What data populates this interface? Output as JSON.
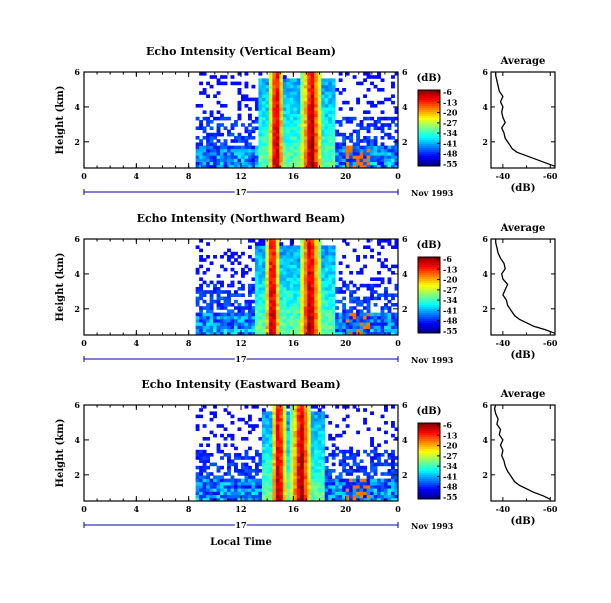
{
  "chart_data": [
    {
      "type": "heatmap",
      "title": "Echo Intensity (Vertical Beam)",
      "ylabel": "Height (km)",
      "xlabel": "",
      "x_ticks": [
        "0",
        "4",
        "8",
        "12",
        "16",
        "20",
        "0"
      ],
      "y_ticks": [
        "2",
        "4",
        "6"
      ],
      "xlim": [
        0,
        24
      ],
      "ylim": [
        0.5,
        6
      ],
      "date_bar": {
        "day": "17",
        "date": "Nov 1993"
      },
      "colorbar": {
        "unit": "(dB)",
        "ticks": [
          "-6",
          "-13",
          "-20",
          "-27",
          "-34",
          "-41",
          "-48",
          "-55"
        ]
      },
      "echo": {
        "start_hour": 8.6,
        "bands": [
          14.7,
          17.4
        ]
      },
      "profile": {
        "title": "Average",
        "xlabel": "(dB)",
        "x_ticks": [
          "-40",
          "-60"
        ],
        "y_ticks": [
          "2",
          "4",
          "6"
        ],
        "xlim": [
          -35,
          -62
        ],
        "height_km": [
          0.6,
          0.8,
          1.0,
          1.2,
          1.4,
          1.6,
          1.8,
          2.0,
          2.2,
          2.5,
          2.8,
          3.1,
          3.4,
          3.7,
          4.0,
          4.3,
          4.6,
          4.9,
          5.2,
          5.5,
          5.8,
          6.0
        ],
        "db": [
          -62,
          -58,
          -54,
          -50,
          -46,
          -44,
          -43,
          -42,
          -41,
          -40.5,
          -39.5,
          -41,
          -40,
          -39.5,
          -40,
          -39,
          -40,
          -38.5,
          -38,
          -37.5,
          -37,
          -37
        ]
      }
    },
    {
      "type": "heatmap",
      "title": "Echo Intensity (Northward Beam)",
      "ylabel": "Height (km)",
      "xlabel": "",
      "x_ticks": [
        "0",
        "4",
        "8",
        "12",
        "16",
        "20",
        "0"
      ],
      "y_ticks": [
        "2",
        "4",
        "6"
      ],
      "xlim": [
        0,
        24
      ],
      "ylim": [
        0.5,
        6
      ],
      "date_bar": {
        "day": "17",
        "date": "Nov 1993"
      },
      "colorbar": {
        "unit": "(dB)",
        "ticks": [
          "-6",
          "-13",
          "-20",
          "-27",
          "-34",
          "-41",
          "-48",
          "-55"
        ]
      },
      "echo": {
        "start_hour": 8.6,
        "bands": [
          14.4,
          17.3
        ]
      },
      "profile": {
        "title": "Average",
        "xlabel": "(dB)",
        "x_ticks": [
          "-40",
          "-60"
        ],
        "y_ticks": [
          "2",
          "4",
          "6"
        ],
        "xlim": [
          -35,
          -62
        ],
        "height_km": [
          0.6,
          0.8,
          1.0,
          1.2,
          1.4,
          1.6,
          1.8,
          2.0,
          2.2,
          2.5,
          2.8,
          3.1,
          3.4,
          3.7,
          4.0,
          4.3,
          4.6,
          4.9,
          5.2,
          5.5,
          5.8,
          6.0
        ],
        "db": [
          -62,
          -58,
          -53,
          -50,
          -47,
          -45,
          -44,
          -43,
          -42,
          -41.5,
          -40,
          -41,
          -42,
          -40,
          -39.5,
          -41,
          -40.5,
          -39,
          -38,
          -37.5,
          -37,
          -37
        ]
      }
    },
    {
      "type": "heatmap",
      "title": "Echo Intensity (Eastward Beam)",
      "ylabel": "Height (km)",
      "xlabel": "Local Time",
      "x_ticks": [
        "0",
        "4",
        "8",
        "12",
        "16",
        "20",
        "0"
      ],
      "y_ticks": [
        "2",
        "4",
        "6"
      ],
      "xlim": [
        0,
        24
      ],
      "ylim": [
        0.5,
        6
      ],
      "date_bar": {
        "day": "17",
        "date": "Nov 1993"
      },
      "colorbar": {
        "unit": "(dB)",
        "ticks": [
          "-6",
          "-13",
          "-20",
          "-27",
          "-34",
          "-41",
          "-48",
          "-55"
        ]
      },
      "echo": {
        "start_hour": 8.6,
        "bands": [
          14.9,
          16.6
        ]
      },
      "profile": {
        "title": "Average",
        "xlabel": "(dB)",
        "x_ticks": [
          "-40",
          "-60"
        ],
        "y_ticks": [
          "2",
          "4",
          "6"
        ],
        "xlim": [
          -35,
          -62
        ],
        "height_km": [
          0.6,
          0.8,
          1.0,
          1.2,
          1.4,
          1.6,
          1.8,
          2.0,
          2.2,
          2.5,
          2.8,
          3.1,
          3.4,
          3.7,
          4.0,
          4.3,
          4.6,
          4.9,
          5.2,
          5.5,
          5.8,
          6.0
        ],
        "db": [
          -60,
          -57,
          -53,
          -50,
          -47,
          -45,
          -44,
          -43,
          -42,
          -41,
          -40.5,
          -39.5,
          -40,
          -39,
          -40,
          -38.5,
          -39,
          -37.5,
          -38,
          -37,
          -36.5,
          -37
        ]
      }
    }
  ]
}
